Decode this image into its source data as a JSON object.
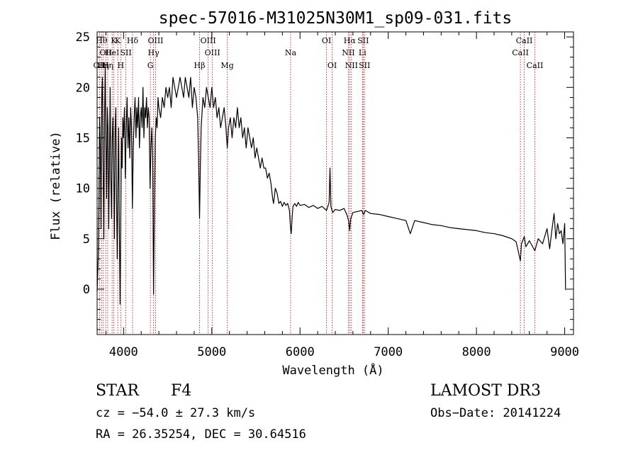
{
  "chart_data": {
    "type": "line",
    "title": "spec-57016-M31025N30M1_sp09-031.fits",
    "xlabel": "Wavelength (Å)",
    "ylabel": "Flux (relative)",
    "xlim": [
      3700,
      9100
    ],
    "ylim": [
      -4.5,
      25.5
    ],
    "xticks": [
      4000,
      5000,
      6000,
      7000,
      8000,
      9000
    ],
    "yticks": [
      0,
      5,
      10,
      15,
      20,
      25
    ],
    "series": [
      {
        "name": "flux",
        "points": [
          [
            3700,
            -0.2
          ],
          [
            3712,
            3
          ],
          [
            3720,
            8
          ],
          [
            3728,
            17
          ],
          [
            3736,
            14
          ],
          [
            3744,
            6
          ],
          [
            3752,
            19
          ],
          [
            3760,
            21
          ],
          [
            3768,
            12
          ],
          [
            3776,
            5
          ],
          [
            3784,
            17
          ],
          [
            3792,
            22
          ],
          [
            3800,
            15
          ],
          [
            3808,
            9
          ],
          [
            3816,
            18
          ],
          [
            3824,
            16
          ],
          [
            3832,
            6
          ],
          [
            3840,
            13
          ],
          [
            3848,
            20
          ],
          [
            3856,
            11
          ],
          [
            3864,
            7
          ],
          [
            3872,
            15
          ],
          [
            3880,
            17
          ],
          [
            3888,
            12
          ],
          [
            3896,
            5
          ],
          [
            3904,
            16
          ],
          [
            3912,
            18
          ],
          [
            3920,
            9
          ],
          [
            3928,
            3
          ],
          [
            3936,
            10
          ],
          [
            3944,
            16
          ],
          [
            3952,
            6
          ],
          [
            3960,
            -1.5
          ],
          [
            3968,
            7
          ],
          [
            3976,
            15
          ],
          [
            3984,
            12
          ],
          [
            3992,
            17
          ],
          [
            4000,
            15
          ],
          [
            4010,
            18
          ],
          [
            4020,
            11
          ],
          [
            4030,
            16
          ],
          [
            4040,
            19
          ],
          [
            4050,
            14
          ],
          [
            4060,
            17
          ],
          [
            4070,
            13
          ],
          [
            4080,
            18
          ],
          [
            4090,
            16
          ],
          [
            4100,
            8
          ],
          [
            4110,
            14
          ],
          [
            4120,
            17
          ],
          [
            4130,
            19
          ],
          [
            4140,
            15
          ],
          [
            4150,
            18
          ],
          [
            4160,
            16
          ],
          [
            4170,
            19
          ],
          [
            4180,
            14
          ],
          [
            4190,
            17
          ],
          [
            4200,
            18
          ],
          [
            4210,
            16
          ],
          [
            4220,
            20
          ],
          [
            4230,
            15
          ],
          [
            4240,
            18
          ],
          [
            4250,
            17
          ],
          [
            4260,
            19
          ],
          [
            4270,
            16
          ],
          [
            4280,
            18
          ],
          [
            4290,
            17
          ],
          [
            4300,
            10
          ],
          [
            4310,
            14
          ],
          [
            4320,
            16
          ],
          [
            4330,
            13
          ],
          [
            4340,
            -0.5
          ],
          [
            4350,
            9
          ],
          [
            4360,
            15
          ],
          [
            4370,
            17
          ],
          [
            4380,
            16
          ],
          [
            4390,
            19
          ],
          [
            4400,
            18
          ],
          [
            4420,
            17
          ],
          [
            4440,
            19
          ],
          [
            4460,
            18
          ],
          [
            4480,
            20
          ],
          [
            4500,
            19
          ],
          [
            4520,
            20
          ],
          [
            4540,
            18
          ],
          [
            4560,
            21
          ],
          [
            4580,
            20
          ],
          [
            4600,
            19
          ],
          [
            4620,
            20
          ],
          [
            4640,
            21
          ],
          [
            4660,
            20
          ],
          [
            4680,
            19
          ],
          [
            4700,
            21
          ],
          [
            4720,
            20
          ],
          [
            4740,
            19
          ],
          [
            4760,
            21
          ],
          [
            4780,
            18
          ],
          [
            4800,
            20
          ],
          [
            4820,
            19
          ],
          [
            4840,
            17
          ],
          [
            4850,
            13
          ],
          [
            4861,
            7
          ],
          [
            4870,
            12
          ],
          [
            4880,
            16
          ],
          [
            4900,
            19
          ],
          [
            4920,
            18
          ],
          [
            4940,
            20
          ],
          [
            4960,
            19
          ],
          [
            4980,
            18
          ],
          [
            5000,
            20
          ],
          [
            5020,
            18
          ],
          [
            5040,
            19
          ],
          [
            5060,
            17
          ],
          [
            5080,
            18
          ],
          [
            5100,
            16
          ],
          [
            5120,
            17
          ],
          [
            5140,
            18
          ],
          [
            5160,
            16
          ],
          [
            5175,
            14
          ],
          [
            5190,
            16
          ],
          [
            5210,
            17
          ],
          [
            5230,
            15
          ],
          [
            5250,
            17
          ],
          [
            5270,
            16
          ],
          [
            5290,
            18
          ],
          [
            5310,
            16
          ],
          [
            5330,
            17
          ],
          [
            5350,
            15
          ],
          [
            5370,
            16
          ],
          [
            5390,
            14
          ],
          [
            5410,
            16
          ],
          [
            5430,
            15
          ],
          [
            5450,
            14
          ],
          [
            5470,
            15
          ],
          [
            5490,
            13
          ],
          [
            5510,
            14
          ],
          [
            5530,
            13
          ],
          [
            5550,
            12
          ],
          [
            5570,
            13
          ],
          [
            5590,
            12
          ],
          [
            5610,
            12
          ],
          [
            5630,
            11
          ],
          [
            5650,
            11.5
          ],
          [
            5670,
            10.5
          ],
          [
            5690,
            9
          ],
          [
            5700,
            8.5
          ],
          [
            5720,
            10
          ],
          [
            5740,
            9.5
          ],
          [
            5760,
            8.5
          ],
          [
            5780,
            8.7
          ],
          [
            5800,
            8.2
          ],
          [
            5820,
            8.6
          ],
          [
            5840,
            8.3
          ],
          [
            5860,
            8.5
          ],
          [
            5880,
            7.8
          ],
          [
            5893,
            6
          ],
          [
            5900,
            5.5
          ],
          [
            5910,
            7
          ],
          [
            5920,
            8.2
          ],
          [
            5940,
            8.5
          ],
          [
            5960,
            8.2
          ],
          [
            5980,
            8.6
          ],
          [
            6000,
            8.3
          ],
          [
            6050,
            8.4
          ],
          [
            6100,
            8.1
          ],
          [
            6150,
            8.3
          ],
          [
            6200,
            8.0
          ],
          [
            6250,
            8.2
          ],
          [
            6300,
            7.8
          ],
          [
            6330,
            8.6
          ],
          [
            6340,
            12
          ],
          [
            6350,
            8.2
          ],
          [
            6370,
            7.6
          ],
          [
            6400,
            7.9
          ],
          [
            6450,
            7.8
          ],
          [
            6500,
            8.0
          ],
          [
            6530,
            7.4
          ],
          [
            6550,
            6.8
          ],
          [
            6563,
            5.8
          ],
          [
            6575,
            7
          ],
          [
            6600,
            7.6
          ],
          [
            6650,
            7.7
          ],
          [
            6700,
            7.8
          ],
          [
            6720,
            7.4
          ],
          [
            6740,
            7.8
          ],
          [
            6800,
            7.5
          ],
          [
            6900,
            7.4
          ],
          [
            7000,
            7.2
          ],
          [
            7100,
            7.0
          ],
          [
            7200,
            6.8
          ],
          [
            7250,
            5.5
          ],
          [
            7300,
            6.8
          ],
          [
            7400,
            6.6
          ],
          [
            7500,
            6.4
          ],
          [
            7600,
            6.3
          ],
          [
            7700,
            6.1
          ],
          [
            7800,
            6.0
          ],
          [
            7900,
            5.9
          ],
          [
            8000,
            5.8
          ],
          [
            8100,
            5.6
          ],
          [
            8200,
            5.5
          ],
          [
            8300,
            5.3
          ],
          [
            8400,
            5.0
          ],
          [
            8450,
            4.7
          ],
          [
            8498,
            2.8
          ],
          [
            8510,
            4.5
          ],
          [
            8542,
            5.2
          ],
          [
            8560,
            4.2
          ],
          [
            8600,
            4.8
          ],
          [
            8662,
            3.8
          ],
          [
            8700,
            5.0
          ],
          [
            8750,
            4.5
          ],
          [
            8800,
            6.0
          ],
          [
            8830,
            4.0
          ],
          [
            8850,
            5.5
          ],
          [
            8880,
            7.5
          ],
          [
            8900,
            5.0
          ],
          [
            8920,
            6.5
          ],
          [
            8940,
            5.5
          ],
          [
            8960,
            5.8
          ],
          [
            8980,
            4.5
          ],
          [
            9000,
            6.5
          ],
          [
            9010,
            -0.1
          ]
        ]
      }
    ],
    "line_markers": [
      {
        "w": 3727,
        "label": "OII",
        "row": 3
      },
      {
        "w": 3750,
        "label": "Hθ",
        "row": 1
      },
      {
        "w": 3770,
        "label": "Hη",
        "row": 3
      },
      {
        "w": 3798,
        "label": "OII",
        "row": 2
      },
      {
        "w": 3820,
        "label": "Hη",
        "row": 3
      },
      {
        "w": 3870,
        "label": "HeI",
        "row": 2
      },
      {
        "w": 3889,
        "label": "K",
        "row": 1
      },
      {
        "w": 3934,
        "label": "K",
        "row": 1
      },
      {
        "w": 3968,
        "label": "H",
        "row": 3
      },
      {
        "w": 4026,
        "label": "SII",
        "row": 2
      },
      {
        "w": 4102,
        "label": "Hδ",
        "row": 1
      },
      {
        "w": 4304,
        "label": "G",
        "row": 3
      },
      {
        "w": 4340,
        "label": "Hγ",
        "row": 2
      },
      {
        "w": 4363,
        "label": "OIII",
        "row": 1
      },
      {
        "w": 4861,
        "label": "Hβ",
        "row": 3
      },
      {
        "w": 4959,
        "label": "OIII",
        "row": 1
      },
      {
        "w": 5007,
        "label": "OIII",
        "row": 2
      },
      {
        "w": 5175,
        "label": "Mg",
        "row": 3
      },
      {
        "w": 5893,
        "label": "Na",
        "row": 2
      },
      {
        "w": 6300,
        "label": "OI",
        "row": 1
      },
      {
        "w": 6364,
        "label": "OI",
        "row": 3
      },
      {
        "w": 6548,
        "label": "NII",
        "row": 2
      },
      {
        "w": 6563,
        "label": "Hα",
        "row": 1
      },
      {
        "w": 6583,
        "label": "NII",
        "row": 3
      },
      {
        "w": 6708,
        "label": "Li",
        "row": 2
      },
      {
        "w": 6716,
        "label": "SII",
        "row": 1
      },
      {
        "w": 6731,
        "label": "SII",
        "row": 3
      },
      {
        "w": 8498,
        "label": "CaII",
        "row": 2
      },
      {
        "w": 8542,
        "label": "CaII",
        "row": 1
      },
      {
        "w": 8662,
        "label": "CaII",
        "row": 3
      }
    ]
  },
  "info": {
    "class_label": "STAR",
    "subclass": "F4",
    "survey": "LAMOST DR3",
    "cz": "cz = −54.0 ± 27.3 km/s",
    "obs_date": "Obs−Date: 20141224",
    "coords": "RA =  26.35254, DEC =  30.64516"
  },
  "colors": {
    "line": "#000000",
    "marker": "#cc0000"
  }
}
